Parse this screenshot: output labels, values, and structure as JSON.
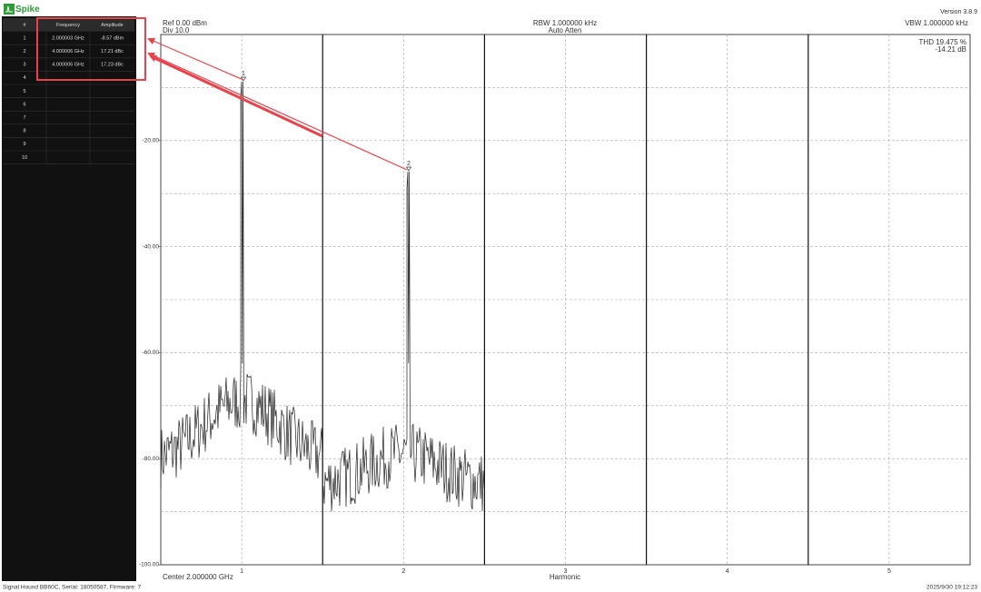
{
  "app": {
    "name": "Spike",
    "version": "Version 3.8.9"
  },
  "marker_table": {
    "headers": [
      "#",
      "Frequency",
      "Amplitude"
    ],
    "rows": [
      [
        "1",
        "2.000003 GHz",
        "-8.57 dBm"
      ],
      [
        "2",
        "4.000006 GHz",
        "17.21 dBc"
      ],
      [
        "3",
        "4.000006 GHz",
        "17.23 dBc"
      ],
      [
        "4"
      ],
      [
        "5"
      ],
      [
        "6"
      ],
      [
        "7"
      ],
      [
        "8"
      ],
      [
        "9"
      ],
      [
        "10"
      ]
    ]
  },
  "plot": {
    "ref": "Ref 0.00 dBm",
    "div": "Div 10.0",
    "rbw": "RBW 1.000000 kHz",
    "atten": "Auto Atten",
    "vbw": "VBW 1.000000 kHz",
    "thd_percent": "THD 19.475 %",
    "thd_db": "-14.21 dB",
    "ylim": [
      -100,
      0
    ],
    "yticks": [
      {
        "value": -20,
        "label": "-20.00"
      },
      {
        "value": -40,
        "label": "-40.00"
      },
      {
        "value": -60,
        "label": "-60.00"
      },
      {
        "value": -80,
        "label": "-80.00"
      },
      {
        "value": -100,
        "label": "-100.00"
      }
    ],
    "xlim": [
      0.5,
      5.5
    ],
    "xticks": [
      1,
      2,
      3,
      4,
      5
    ],
    "markers": [
      "1",
      "2"
    ],
    "center": "Center 2.000000 GHz",
    "x_label": "Harmonic"
  },
  "status": {
    "device": "Signal Hound BB60C, Serial: 18050587, Firmware: 7",
    "timestamp": "2025/9/30 19:12:23"
  }
}
